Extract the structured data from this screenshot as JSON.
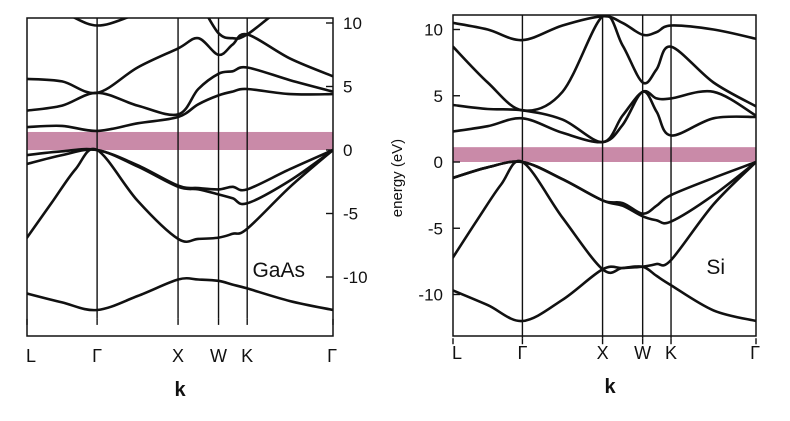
{
  "chart_data": [
    {
      "type": "line",
      "title": "",
      "material_label": "GaAs",
      "xlabel": "k",
      "ylabel": "energy (eV)",
      "ylim": [
        -13.3,
        11
      ],
      "y_ticks": [
        10,
        5,
        0,
        -5,
        -10
      ],
      "y_tick_labels": [
        "10",
        "5",
        "0",
        "-5",
        "-10"
      ],
      "k_points": [
        "L",
        "Γ",
        "X",
        "W",
        "K",
        "Γ"
      ],
      "k_positions": [
        0.0,
        0.866,
        1.866,
        2.366,
        2.72,
        3.78
      ],
      "band_gap": [
        0,
        1.42
      ],
      "gap_color": "#c98aa8",
      "bands": [
        {
          "x": [
            0,
            0.433,
            0.866,
            1.366,
            1.866,
            2.116,
            2.366,
            2.54,
            2.72,
            3.25,
            3.78
          ],
          "y": [
            -11.3,
            -12.0,
            -12.6,
            -11.5,
            -10.2,
            -10.2,
            -10.3,
            -10.6,
            -10.9,
            -11.9,
            -12.6
          ]
        },
        {
          "x": [
            0,
            0.3,
            0.6,
            0.866,
            1.366,
            1.866,
            2.116,
            2.366,
            2.54,
            2.72,
            3.25,
            3.78
          ],
          "y": [
            -6.9,
            -4.2,
            -1.5,
            0.0,
            -4.0,
            -7.0,
            -7.0,
            -6.9,
            -6.6,
            -6.2,
            -2.9,
            0.0
          ]
        },
        {
          "x": [
            0,
            0.433,
            0.866,
            1.366,
            1.866,
            2.116,
            2.366,
            2.54,
            2.72,
            3.25,
            3.78
          ],
          "y": [
            -1.1,
            -0.4,
            0.0,
            -1.3,
            -2.9,
            -3.1,
            -3.5,
            -3.8,
            -4.2,
            -2.4,
            0.0
          ]
        },
        {
          "x": [
            0,
            0.433,
            0.866,
            1.366,
            1.866,
            2.116,
            2.366,
            2.54,
            2.72,
            3.25,
            3.78
          ],
          "y": [
            -0.4,
            -0.1,
            0.0,
            -1.2,
            -2.8,
            -3.0,
            -3.1,
            -2.9,
            -3.1,
            -1.5,
            0.0
          ]
        },
        {
          "x": [
            0,
            0.433,
            0.866,
            1.366,
            1.866,
            2.116,
            2.366,
            2.54,
            2.72,
            3.25,
            3.78
          ],
          "y": [
            1.8,
            1.9,
            1.5,
            2.1,
            2.6,
            3.6,
            4.3,
            4.6,
            4.8,
            4.4,
            4.4
          ]
        },
        {
          "x": [
            0,
            0.433,
            0.866,
            1.366,
            1.866,
            2.116,
            2.366,
            2.54,
            2.72,
            3.25,
            3.78
          ],
          "y": [
            3.1,
            3.5,
            4.5,
            3.5,
            2.8,
            4.8,
            6.0,
            6.2,
            6.5,
            5.5,
            4.6
          ]
        },
        {
          "x": [
            0,
            0.433,
            0.866,
            1.366,
            1.866,
            2.116,
            2.366,
            2.54,
            2.72,
            3.25,
            3.78
          ],
          "y": [
            5.6,
            5.4,
            4.5,
            6.5,
            8.0,
            8.8,
            7.5,
            8.3,
            9.1,
            7.2,
            5.8
          ]
        },
        {
          "x": [
            0,
            0.433,
            0.866,
            1.366,
            1.866,
            2.116,
            2.366,
            2.54,
            2.72,
            3.25,
            3.78
          ],
          "y": [
            11.0,
            10.8,
            9.8,
            10.7,
            11.5,
            11.5,
            9.2,
            8.8,
            9.1,
            11.5,
            12.0
          ]
        }
      ]
    },
    {
      "type": "line",
      "title": "",
      "material_label": "Si",
      "xlabel": "k",
      "ylabel": "",
      "ylim": [
        -13.3,
        11
      ],
      "y_ticks": [
        10,
        5,
        0,
        -5,
        -10
      ],
      "y_tick_labels": [
        "10",
        "5",
        "0",
        "-5",
        "-10"
      ],
      "k_points": [
        "L",
        "Γ",
        "X",
        "W",
        "K",
        "Γ"
      ],
      "k_positions": [
        0.0,
        0.866,
        1.866,
        2.366,
        2.72,
        3.78
      ],
      "band_gap": [
        0,
        1.12
      ],
      "gap_color": "#c98aa8",
      "bands": [
        {
          "x": [
            0,
            0.433,
            0.866,
            1.366,
            1.866,
            2.116,
            2.366,
            2.54,
            2.72,
            3.25,
            3.78
          ],
          "y": [
            -9.7,
            -10.8,
            -12.0,
            -10.4,
            -8.1,
            -8.0,
            -7.9,
            -8.6,
            -9.3,
            -11.2,
            -12.0
          ]
        },
        {
          "x": [
            0,
            0.3,
            0.6,
            0.866,
            1.366,
            1.866,
            2.116,
            2.366,
            2.54,
            2.72,
            3.25,
            3.78
          ],
          "y": [
            -7.2,
            -4.4,
            -1.7,
            0.0,
            -4.2,
            -8.1,
            -8.0,
            -7.9,
            -7.7,
            -7.4,
            -3.2,
            0.0
          ]
        },
        {
          "x": [
            0,
            0.433,
            0.866,
            1.366,
            1.866,
            2.116,
            2.366,
            2.54,
            2.72,
            3.25,
            3.78
          ],
          "y": [
            -1.2,
            -0.4,
            0.0,
            -1.3,
            -2.9,
            -3.3,
            -4.1,
            -4.4,
            -4.5,
            -2.5,
            0.0
          ]
        },
        {
          "x": [
            0,
            0.433,
            0.866,
            1.366,
            1.866,
            2.116,
            2.366,
            2.54,
            2.72,
            3.25,
            3.78
          ],
          "y": [
            -1.2,
            -0.4,
            0.0,
            -1.3,
            -2.9,
            -3.1,
            -3.9,
            -3.3,
            -2.5,
            -1.2,
            0.0
          ]
        },
        {
          "x": [
            0,
            0.433,
            0.866,
            1.366,
            1.866,
            2.116,
            2.366,
            2.54,
            2.72,
            3.25,
            3.78
          ],
          "y": [
            2.3,
            2.7,
            3.3,
            2.2,
            1.5,
            2.8,
            5.3,
            3.8,
            2.0,
            3.3,
            3.4
          ]
        },
        {
          "x": [
            0,
            0.433,
            0.866,
            1.366,
            1.866,
            2.116,
            2.366,
            2.54,
            2.72,
            3.25,
            3.78
          ],
          "y": [
            4.3,
            4.0,
            3.9,
            3.2,
            1.5,
            3.5,
            5.3,
            4.8,
            4.8,
            5.3,
            3.5
          ]
        },
        {
          "x": [
            0,
            0.433,
            0.866,
            1.366,
            1.866,
            2.116,
            2.366,
            2.54,
            2.72,
            3.25,
            3.78
          ],
          "y": [
            8.7,
            6.0,
            3.9,
            5.3,
            11.0,
            8.8,
            6.0,
            7.0,
            8.7,
            6.0,
            4.2
          ]
        },
        {
          "x": [
            0,
            0.433,
            0.866,
            1.366,
            1.866,
            2.116,
            2.366,
            2.54,
            2.72,
            3.25,
            3.78
          ],
          "y": [
            10.5,
            10.0,
            9.2,
            10.3,
            11.0,
            10.5,
            9.6,
            9.8,
            10.3,
            10.0,
            9.3
          ]
        }
      ]
    }
  ]
}
